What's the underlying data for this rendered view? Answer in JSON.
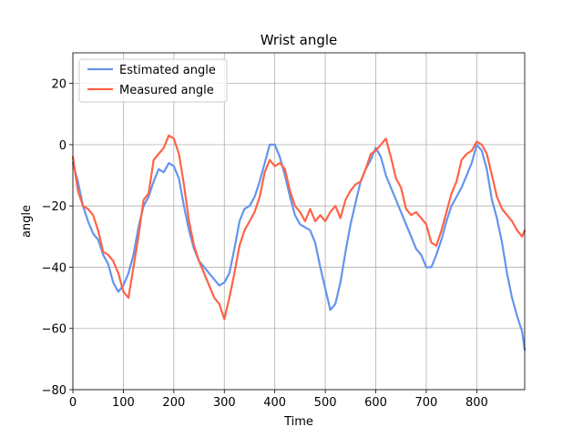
{
  "chart_data": {
    "type": "line",
    "title": "Wrist angle",
    "xlabel": "Time",
    "ylabel": "angle",
    "xlim": [
      0,
      895
    ],
    "ylim": [
      -80,
      30
    ],
    "xticks": [
      0,
      100,
      200,
      300,
      400,
      500,
      600,
      700,
      800
    ],
    "yticks": [
      -80,
      -60,
      -40,
      -20,
      0,
      20
    ],
    "grid": true,
    "legend_position": "top-left",
    "series": [
      {
        "name": "Estimated angle",
        "color": "#6495ed",
        "x": [
          0,
          10,
          20,
          30,
          40,
          50,
          60,
          70,
          80,
          90,
          100,
          110,
          120,
          130,
          140,
          150,
          160,
          170,
          180,
          190,
          200,
          210,
          220,
          230,
          240,
          250,
          260,
          270,
          280,
          290,
          300,
          310,
          320,
          330,
          340,
          350,
          360,
          370,
          380,
          390,
          400,
          410,
          420,
          430,
          440,
          450,
          460,
          470,
          480,
          490,
          500,
          510,
          520,
          530,
          540,
          550,
          560,
          570,
          580,
          590,
          600,
          610,
          620,
          630,
          640,
          650,
          660,
          670,
          680,
          690,
          700,
          710,
          720,
          730,
          740,
          750,
          760,
          770,
          780,
          790,
          800,
          810,
          820,
          830,
          840,
          850,
          860,
          870,
          880,
          890,
          895
        ],
        "y": [
          -6,
          -12,
          -20,
          -25,
          -29,
          -31,
          -36,
          -39,
          -45,
          -48,
          -46,
          -42,
          -36,
          -27,
          -20,
          -17,
          -12,
          -8,
          -9,
          -6,
          -7,
          -11,
          -20,
          -28,
          -34,
          -38,
          -40,
          -42,
          -44,
          -46,
          -45,
          -42,
          -34,
          -25,
          -21,
          -20,
          -17,
          -12,
          -6,
          0,
          0,
          -4,
          -10,
          -17,
          -23,
          -26,
          -27,
          -28,
          -32,
          -40,
          -47,
          -54,
          -52,
          -45,
          -35,
          -26,
          -19,
          -12,
          -8,
          -5,
          -1,
          -4,
          -10,
          -14,
          -18,
          -22,
          -26,
          -30,
          -34,
          -36,
          -40,
          -40,
          -36,
          -31,
          -25,
          -20,
          -17,
          -14,
          -10,
          -6,
          0,
          -2,
          -8,
          -18,
          -24,
          -32,
          -42,
          -50,
          -56,
          -61,
          -67
        ]
      },
      {
        "name": "Measured angle",
        "color": "#ff6347",
        "x": [
          0,
          10,
          20,
          30,
          40,
          50,
          60,
          70,
          80,
          90,
          100,
          110,
          120,
          130,
          140,
          150,
          160,
          170,
          180,
          190,
          200,
          210,
          220,
          230,
          240,
          250,
          260,
          270,
          280,
          290,
          300,
          310,
          320,
          330,
          340,
          350,
          360,
          370,
          380,
          390,
          400,
          410,
          420,
          430,
          440,
          450,
          460,
          470,
          480,
          490,
          500,
          510,
          520,
          530,
          540,
          550,
          560,
          570,
          580,
          590,
          600,
          610,
          620,
          630,
          640,
          650,
          660,
          670,
          680,
          690,
          700,
          710,
          720,
          730,
          740,
          750,
          760,
          770,
          780,
          790,
          800,
          810,
          820,
          830,
          840,
          850,
          860,
          870,
          880,
          890,
          895
        ],
        "y": [
          -4,
          -15,
          -20,
          -21,
          -23,
          -28,
          -35,
          -36,
          -38,
          -42,
          -48,
          -50,
          -40,
          -30,
          -18,
          -16,
          -5,
          -3,
          -1,
          3,
          2,
          -3,
          -13,
          -25,
          -33,
          -38,
          -42,
          -46,
          -50,
          -52,
          -57,
          -50,
          -42,
          -33,
          -28,
          -25,
          -22,
          -17,
          -9,
          -5,
          -7,
          -6,
          -8,
          -15,
          -20,
          -22,
          -25,
          -21,
          -25,
          -23,
          -25,
          -22,
          -20,
          -24,
          -18,
          -15,
          -13,
          -12,
          -8,
          -3,
          -2,
          0,
          2,
          -4,
          -11,
          -14,
          -21,
          -23,
          -22,
          -24,
          -26,
          -32,
          -33,
          -28,
          -22,
          -16,
          -12,
          -5,
          -3,
          -2,
          1,
          0,
          -3,
          -10,
          -17,
          -21,
          -23,
          -25,
          -28,
          -30,
          -28
        ]
      }
    ]
  }
}
